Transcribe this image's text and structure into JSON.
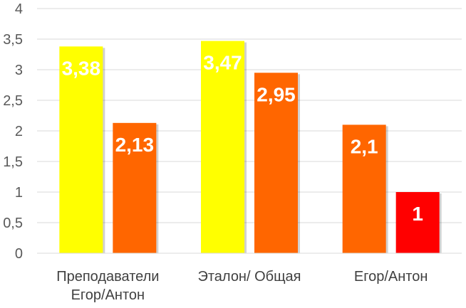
{
  "chart_data": {
    "type": "bar",
    "ylim": [
      0,
      4
    ],
    "yticks": [
      "0",
      "0,5",
      "1",
      "1,5",
      "2",
      "2,5",
      "3",
      "3,5",
      "4"
    ],
    "grid": true,
    "groups": [
      {
        "category": [
          "Преподаватели",
          "Егор/Антон"
        ],
        "bars": [
          {
            "value": 3.38,
            "label": "3,38",
            "color": "#FFFF00"
          },
          {
            "value": 2.13,
            "label": "2,13",
            "color": "#FF6600"
          }
        ]
      },
      {
        "category": [
          "Эталон/ Общая"
        ],
        "bars": [
          {
            "value": 3.47,
            "label": "3,47",
            "color": "#FFFF00"
          },
          {
            "value": 2.95,
            "label": "2,95",
            "color": "#FF6600"
          }
        ]
      },
      {
        "category": [
          "Егор/Антон"
        ],
        "bars": [
          {
            "value": 2.1,
            "label": "2,1",
            "color": "#FF6600"
          },
          {
            "value": 1,
            "label": "1",
            "color": "#FF0000"
          }
        ]
      }
    ]
  }
}
